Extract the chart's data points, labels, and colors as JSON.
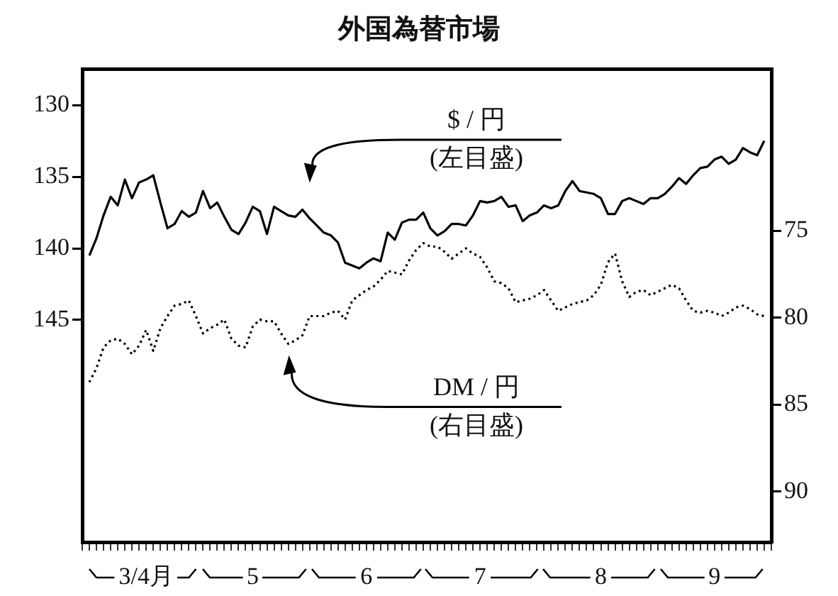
{
  "chart_data": {
    "type": "line",
    "title": "外国為替市場",
    "categories": [
      null,
      null,
      null,
      null,
      null,
      null,
      null,
      null,
      null,
      "3/4月",
      null,
      null,
      null,
      null,
      null,
      null,
      null,
      null,
      null,
      null,
      null,
      null,
      null,
      null,
      "5",
      null,
      null,
      null,
      null,
      null,
      null,
      null,
      null,
      null,
      null,
      null,
      null,
      null,
      null,
      null,
      "6",
      null,
      null,
      null,
      null,
      null,
      null,
      null,
      null,
      null,
      null,
      null,
      null,
      null,
      null,
      null,
      "7",
      null,
      null,
      null,
      null,
      null,
      null,
      null,
      null,
      null,
      null,
      null,
      null,
      null,
      null,
      null,
      null,
      "8",
      null,
      null,
      null,
      null,
      null,
      null,
      null,
      null,
      null,
      null,
      null,
      null,
      null,
      null,
      null,
      "9",
      null,
      null,
      null,
      null,
      null,
      null,
      null,
      null
    ],
    "series": [
      {
        "name": "$ / 円",
        "color": "#000000",
        "line_style": "solid",
        "axis": "y",
        "values": [
          null,
          140.5,
          139.3,
          137.7,
          136.4,
          137.0,
          135.2,
          136.5,
          135.4,
          135.2,
          134.9,
          136.8,
          138.6,
          138.3,
          137.4,
          137.8,
          137.5,
          136.0,
          137.2,
          136.8,
          137.8,
          138.7,
          139.0,
          138.2,
          137.1,
          137.4,
          139.0,
          137.1,
          137.4,
          137.7,
          137.8,
          137.3,
          137.9,
          138.4,
          138.9,
          139.1,
          139.6,
          141.0,
          141.2,
          141.4,
          141.0,
          140.7,
          140.9,
          138.9,
          139.4,
          138.2,
          138.0,
          138.0,
          137.5,
          138.6,
          139.1,
          138.8,
          138.3,
          138.3,
          138.4,
          137.7,
          136.7,
          136.8,
          136.7,
          136.4,
          137.1,
          137.0,
          138.1,
          137.7,
          137.5,
          137.0,
          137.2,
          137.0,
          136.0,
          135.3,
          136.0,
          136.1,
          136.2,
          136.5,
          137.6,
          137.6,
          136.7,
          136.5,
          136.7,
          136.9,
          136.5,
          136.5,
          136.2,
          135.7,
          135.1,
          135.5,
          134.9,
          134.4,
          134.3,
          133.8,
          133.6,
          134.1,
          133.8,
          133.0,
          133.3,
          133.5,
          132.5,
          null
        ]
      },
      {
        "name": "DM / 円",
        "color": "#000000",
        "line_style": "dotted",
        "axis": "y2",
        "values": [
          null,
          83.7,
          82.9,
          81.7,
          81.3,
          81.2,
          81.5,
          82.1,
          81.6,
          80.7,
          81.9,
          80.6,
          79.9,
          79.3,
          79.2,
          79.0,
          79.9,
          80.9,
          80.6,
          80.4,
          80.1,
          81.2,
          81.6,
          81.7,
          80.5,
          80.1,
          80.2,
          80.2,
          80.9,
          81.5,
          81.3,
          81.0,
          79.9,
          79.9,
          79.9,
          79.7,
          79.6,
          80.1,
          79.0,
          78.7,
          78.4,
          78.2,
          77.8,
          77.3,
          77.4,
          77.5,
          76.7,
          76.1,
          75.7,
          75.9,
          75.9,
          76.2,
          76.6,
          76.3,
          76.0,
          76.3,
          76.5,
          77.1,
          77.9,
          78.0,
          78.3,
          79.1,
          79.0,
          78.9,
          78.7,
          78.4,
          79.0,
          79.6,
          79.4,
          79.2,
          79.1,
          79.0,
          78.7,
          78.1,
          76.8,
          76.3,
          77.9,
          78.8,
          78.5,
          78.4,
          78.7,
          78.5,
          78.3,
          78.1,
          78.3,
          79.0,
          79.6,
          79.7,
          79.6,
          79.7,
          79.9,
          79.7,
          79.4,
          79.3,
          79.5,
          79.8,
          79.9,
          null
        ]
      }
    ],
    "annotations": [
      "(左目盛)",
      "(右目盛)"
    ],
    "ylim": [
      160.5,
      127.5
    ],
    "yticks": [
      130,
      135,
      140,
      145
    ],
    "y2lim": [
      92.9,
      65.7
    ],
    "y2ticks": [
      75,
      80,
      85,
      90
    ],
    "grid": false,
    "legend": false,
    "marker": "none"
  }
}
